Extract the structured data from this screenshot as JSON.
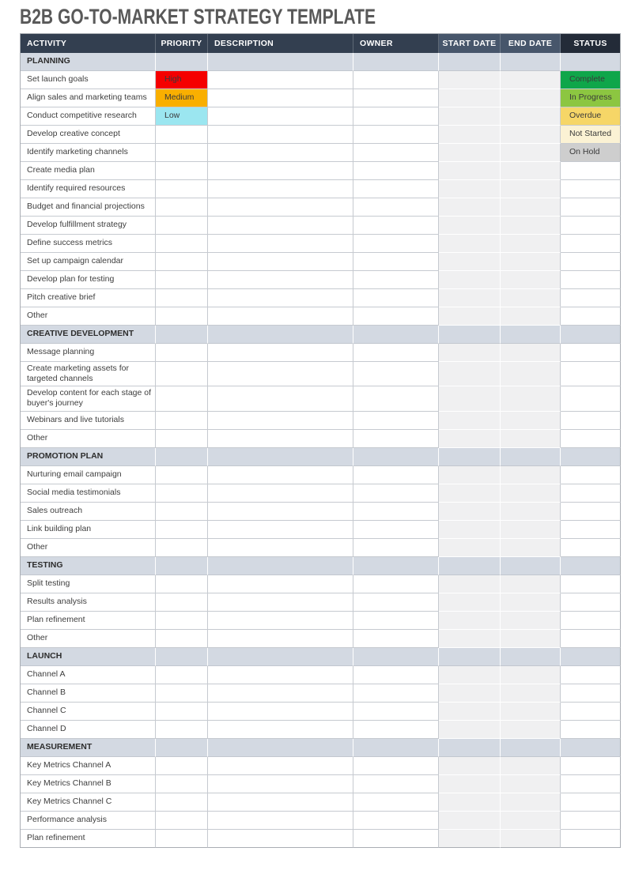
{
  "page_title": "B2B GO-TO-MARKET STRATEGY TEMPLATE",
  "colors": {
    "header_main": "#333f50",
    "header_date": "#47566b",
    "header_status": "#232b38",
    "section_bg": "#d3d9e2",
    "date_cell_bg": "#f0f0f1",
    "title_text": "#595959"
  },
  "priority_colors": {
    "High": "#f50000",
    "Medium": "#f9af00",
    "Low": "#9be6f0"
  },
  "status_colors": {
    "Complete": "#0fa64a",
    "In Progress": "#8cc641",
    "Overdue": "#f6d667",
    "Not Started": "#fbf2d4",
    "On Hold": "#cecece"
  },
  "table": {
    "columns": [
      {
        "label": "ACTIVITY",
        "variant": "main",
        "align": "left"
      },
      {
        "label": "PRIORITY",
        "variant": "main",
        "align": "center"
      },
      {
        "label": "DESCRIPTION",
        "variant": "main",
        "align": "left"
      },
      {
        "label": "OWNER",
        "variant": "main",
        "align": "left"
      },
      {
        "label": "START DATE",
        "variant": "date",
        "align": "center"
      },
      {
        "label": "END DATE",
        "variant": "date",
        "align": "center"
      },
      {
        "label": "STATUS",
        "variant": "status",
        "align": "center"
      }
    ],
    "sections": [
      {
        "label": "PLANNING",
        "rows": [
          {
            "activity": "Set launch goals",
            "priority": "High",
            "status": "Complete"
          },
          {
            "activity": "Align sales and marketing teams",
            "priority": "Medium",
            "status": "In Progress"
          },
          {
            "activity": "Conduct competitive research",
            "priority": "Low",
            "status": "Overdue"
          },
          {
            "activity": "Develop creative concept",
            "status": "Not Started"
          },
          {
            "activity": "Identify marketing channels",
            "status": "On Hold"
          },
          {
            "activity": "Create media plan"
          },
          {
            "activity": "Identify required resources"
          },
          {
            "activity": "Budget and financial projections"
          },
          {
            "activity": "Develop fulfillment strategy"
          },
          {
            "activity": "Define success metrics"
          },
          {
            "activity": "Set up campaign calendar"
          },
          {
            "activity": "Develop plan for testing"
          },
          {
            "activity": "Pitch creative brief"
          },
          {
            "activity": "Other"
          }
        ]
      },
      {
        "label": "CREATIVE DEVELOPMENT",
        "rows": [
          {
            "activity": "Message planning"
          },
          {
            "activity": "Create marketing assets for targeted channels"
          },
          {
            "activity": "Develop content for each stage of buyer's journey"
          },
          {
            "activity": "Webinars and live tutorials"
          },
          {
            "activity": "Other"
          }
        ]
      },
      {
        "label": "PROMOTION PLAN",
        "rows": [
          {
            "activity": "Nurturing email campaign"
          },
          {
            "activity": "Social media testimonials"
          },
          {
            "activity": "Sales outreach"
          },
          {
            "activity": "Link building plan"
          },
          {
            "activity": "Other"
          }
        ]
      },
      {
        "label": "TESTING",
        "rows": [
          {
            "activity": "Split testing"
          },
          {
            "activity": "Results analysis"
          },
          {
            "activity": "Plan refinement"
          },
          {
            "activity": "Other"
          }
        ]
      },
      {
        "label": "LAUNCH",
        "rows": [
          {
            "activity": "Channel A"
          },
          {
            "activity": "Channel B"
          },
          {
            "activity": "Channel C"
          },
          {
            "activity": "Channel D"
          }
        ]
      },
      {
        "label": "MEASUREMENT",
        "rows": [
          {
            "activity": "Key Metrics Channel A"
          },
          {
            "activity": "Key Metrics Channel B"
          },
          {
            "activity": "Key Metrics Channel C"
          },
          {
            "activity": "Performance analysis"
          },
          {
            "activity": "Plan refinement"
          }
        ]
      }
    ]
  }
}
